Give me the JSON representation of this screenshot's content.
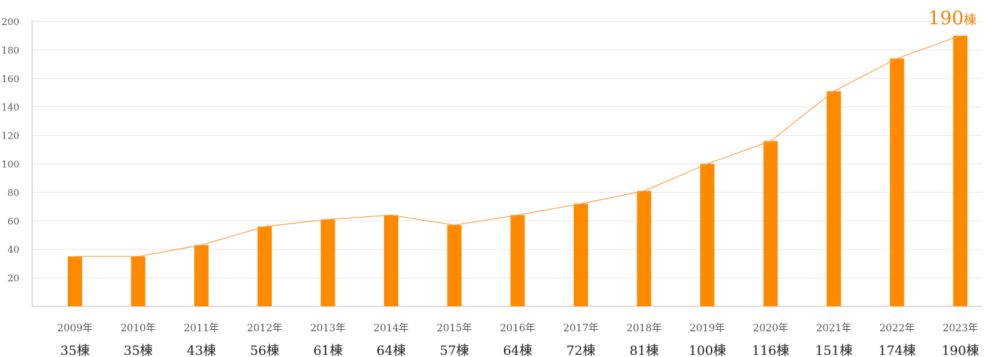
{
  "chart_data": {
    "type": "bar",
    "categories": [
      "2009年",
      "2010年",
      "2011年",
      "2012年",
      "2013年",
      "2014年",
      "2015年",
      "2016年",
      "2017年",
      "2018年",
      "2019年",
      "2020年",
      "2021年",
      "2022年",
      "2023年"
    ],
    "values": [
      35,
      35,
      43,
      56,
      61,
      64,
      57,
      64,
      72,
      81,
      100,
      116,
      151,
      174,
      190
    ],
    "value_labels": [
      "35棟",
      "35棟",
      "43棟",
      "56棟",
      "61棟",
      "64棟",
      "57棟",
      "64棟",
      "72棟",
      "81棟",
      "100棟",
      "116棟",
      "151棟",
      "174棟",
      "190棟"
    ],
    "overlay_line": true,
    "ylim": [
      0,
      200
    ],
    "yticks": [
      20,
      40,
      60,
      80,
      100,
      120,
      140,
      160,
      180,
      200
    ],
    "grid": true,
    "callout": {
      "number": "190",
      "unit": "棟"
    },
    "colors": {
      "bar": "#ff8a00",
      "line": "#f5a04a",
      "grid": "#e6e6e6",
      "axis": "#bbbbbb",
      "callout": "#f08300"
    }
  }
}
